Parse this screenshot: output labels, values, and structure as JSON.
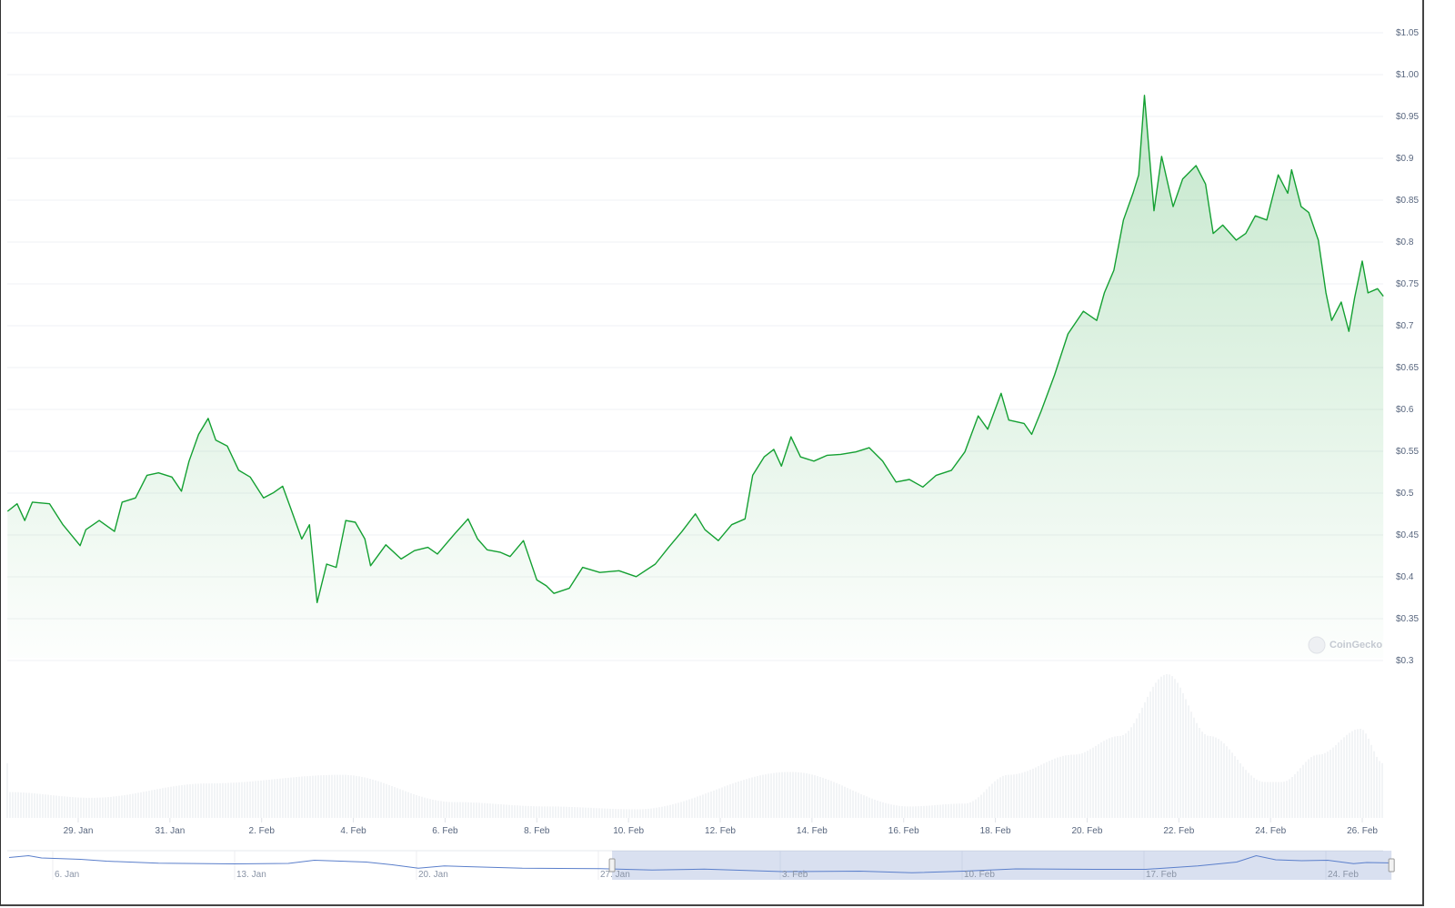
{
  "chart_data": {
    "type": "area",
    "title": "",
    "xlabel": "",
    "ylabel": "",
    "ylim": [
      0.3,
      1.05
    ],
    "y_ticks": [
      "$0.3",
      "$0.35",
      "$0.4",
      "$0.45",
      "$0.5",
      "$0.55",
      "$0.6",
      "$0.65",
      "$0.7",
      "$0.75",
      "$0.8",
      "$0.85",
      "$0.9",
      "$0.95",
      "$1.00",
      "$1.05"
    ],
    "y_tick_values": [
      0.3,
      0.35,
      0.4,
      0.45,
      0.5,
      0.55,
      0.6,
      0.65,
      0.7,
      0.75,
      0.8,
      0.85,
      0.9,
      0.95,
      1.0,
      1.05
    ],
    "x_ticks": [
      "29. Jan",
      "31. Jan",
      "2. Feb",
      "4. Feb",
      "6. Feb",
      "8. Feb",
      "10. Feb",
      "12. Feb",
      "14. Feb",
      "16. Feb",
      "18. Feb",
      "20. Feb",
      "22. Feb",
      "24. Feb",
      "26. Feb"
    ],
    "grid": true,
    "line_color": "#14a032",
    "price": [
      [
        "27 Jan 11:00",
        0.475
      ],
      [
        "27 Jan 16:00",
        0.484
      ],
      [
        "27 Jan 20:00",
        0.464
      ],
      [
        "28 Jan 00:00",
        0.486
      ],
      [
        "28 Jan 09:00",
        0.484
      ],
      [
        "28 Jan 16:00",
        0.459
      ],
      [
        "29 Jan 01:00",
        0.434
      ],
      [
        "29 Jan 04:00",
        0.453
      ],
      [
        "29 Jan 11:00",
        0.464
      ],
      [
        "29 Jan 19:00",
        0.451
      ],
      [
        "29 Jan 23:00",
        0.486
      ],
      [
        "30 Jan 06:00",
        0.491
      ],
      [
        "30 Jan 12:00",
        0.518
      ],
      [
        "30 Jan 18:00",
        0.521
      ],
      [
        "31 Jan 01:00",
        0.516
      ],
      [
        "31 Jan 06:00",
        0.499
      ],
      [
        "31 Jan 10:00",
        0.535
      ],
      [
        "31 Jan 15:00",
        0.567
      ],
      [
        "31 Jan 20:00",
        0.586
      ],
      [
        "1 Feb 00:00",
        0.56
      ],
      [
        "1 Feb 06:00",
        0.553
      ],
      [
        "1 Feb 12:00",
        0.524
      ],
      [
        "1 Feb 18:00",
        0.516
      ],
      [
        "2 Feb 01:00",
        0.491
      ],
      [
        "2 Feb 06:00",
        0.497
      ],
      [
        "2 Feb 11:00",
        0.505
      ],
      [
        "2 Feb 15:00",
        0.48
      ],
      [
        "2 Feb 21:00",
        0.442
      ],
      [
        "3 Feb 01:00",
        0.459
      ],
      [
        "3 Feb 05:00",
        0.366
      ],
      [
        "3 Feb 10:00",
        0.412
      ],
      [
        "3 Feb 15:00",
        0.408
      ],
      [
        "3 Feb 20:00",
        0.464
      ],
      [
        "4 Feb 01:00",
        0.462
      ],
      [
        "4 Feb 06:00",
        0.442
      ],
      [
        "4 Feb 09:00",
        0.41
      ],
      [
        "4 Feb 17:00",
        0.435
      ],
      [
        "5 Feb 01:00",
        0.418
      ],
      [
        "5 Feb 08:00",
        0.428
      ],
      [
        "5 Feb 15:00",
        0.432
      ],
      [
        "5 Feb 20:00",
        0.424
      ],
      [
        "6 Feb 05:00",
        0.448
      ],
      [
        "6 Feb 12:00",
        0.466
      ],
      [
        "6 Feb 17:00",
        0.442
      ],
      [
        "6 Feb 22:00",
        0.429
      ],
      [
        "7 Feb 05:00",
        0.426
      ],
      [
        "7 Feb 10:00",
        0.421
      ],
      [
        "7 Feb 17:00",
        0.44
      ],
      [
        "8 Feb 00:00",
        0.393
      ],
      [
        "8 Feb 05:00",
        0.386
      ],
      [
        "8 Feb 09:00",
        0.377
      ],
      [
        "8 Feb 17:00",
        0.383
      ],
      [
        "9 Feb 00:00",
        0.408
      ],
      [
        "9 Feb 09:00",
        0.402
      ],
      [
        "9 Feb 19:00",
        0.404
      ],
      [
        "10 Feb 04:00",
        0.397
      ],
      [
        "10 Feb 14:00",
        0.412
      ],
      [
        "10 Feb 21:00",
        0.432
      ],
      [
        "11 Feb 04:00",
        0.451
      ],
      [
        "11 Feb 11:00",
        0.472
      ],
      [
        "11 Feb 16:00",
        0.453
      ],
      [
        "11 Feb 23:00",
        0.44
      ],
      [
        "12 Feb 06:00",
        0.459
      ],
      [
        "12 Feb 13:00",
        0.466
      ],
      [
        "12 Feb 17:00",
        0.518
      ],
      [
        "12 Feb 23:00",
        0.54
      ],
      [
        "13 Feb 04:00",
        0.549
      ],
      [
        "13 Feb 08:00",
        0.529
      ],
      [
        "13 Feb 13:00",
        0.564
      ],
      [
        "13 Feb 18:00",
        0.54
      ],
      [
        "14 Feb 01:00",
        0.535
      ],
      [
        "14 Feb 08:00",
        0.542
      ],
      [
        "14 Feb 15:00",
        0.543
      ],
      [
        "14 Feb 23:00",
        0.546
      ],
      [
        "15 Feb 06:00",
        0.551
      ],
      [
        "15 Feb 13:00",
        0.535
      ],
      [
        "15 Feb 20:00",
        0.51
      ],
      [
        "16 Feb 03:00",
        0.513
      ],
      [
        "16 Feb 10:00",
        0.504
      ],
      [
        "16 Feb 17:00",
        0.518
      ],
      [
        "17 Feb 01:00",
        0.524
      ],
      [
        "17 Feb 08:00",
        0.546
      ],
      [
        "17 Feb 15:00",
        0.589
      ],
      [
        "17 Feb 20:00",
        0.573
      ],
      [
        "18 Feb 03:00",
        0.616
      ],
      [
        "18 Feb 07:00",
        0.584
      ],
      [
        "18 Feb 15:00",
        0.58
      ],
      [
        "18 Feb 19:00",
        0.567
      ],
      [
        "19 Feb 00:00",
        0.595
      ],
      [
        "19 Feb 07:00",
        0.638
      ],
      [
        "19 Feb 14:00",
        0.687
      ],
      [
        "19 Feb 22:00",
        0.714
      ],
      [
        "20 Feb 05:00",
        0.703
      ],
      [
        "20 Feb 09:00",
        0.736
      ],
      [
        "20 Feb 14:00",
        0.763
      ],
      [
        "20 Feb 19:00",
        0.823
      ],
      [
        "21 Feb 00:00",
        0.855
      ],
      [
        "21 Feb 03:00",
        0.877
      ],
      [
        "21 Feb 06:00",
        0.972
      ],
      [
        "21 Feb 11:00",
        0.834
      ],
      [
        "21 Feb 15:00",
        0.899
      ],
      [
        "21 Feb 21:00",
        0.839
      ],
      [
        "22 Feb 02:00",
        0.872
      ],
      [
        "22 Feb 09:00",
        0.888
      ],
      [
        "22 Feb 14:00",
        0.866
      ],
      [
        "22 Feb 18:00",
        0.807
      ],
      [
        "22 Feb 23:00",
        0.817
      ],
      [
        "23 Feb 06:00",
        0.799
      ],
      [
        "23 Feb 11:00",
        0.807
      ],
      [
        "23 Feb 16:00",
        0.828
      ],
      [
        "23 Feb 22:00",
        0.823
      ],
      [
        "24 Feb 04:00",
        0.877
      ],
      [
        "24 Feb 09:00",
        0.855
      ],
      [
        "24 Feb 11:00",
        0.883
      ],
      [
        "24 Feb 16:00",
        0.839
      ],
      [
        "24 Feb 20:00",
        0.832
      ],
      [
        "25 Feb 01:00",
        0.799
      ],
      [
        "25 Feb 05:00",
        0.736
      ],
      [
        "25 Feb 08:00",
        0.703
      ],
      [
        "25 Feb 13:00",
        0.725
      ],
      [
        "25 Feb 17:00",
        0.69
      ],
      [
        "25 Feb 20:00",
        0.73
      ],
      [
        "26 Feb 00:00",
        0.774
      ],
      [
        "26 Feb 03:00",
        0.736
      ],
      [
        "26 Feb 08:00",
        0.741
      ],
      [
        "26 Feb 11:00",
        0.732
      ]
    ],
    "volume_relative": [
      [
        "27 Jan 11:00",
        0.18
      ],
      [
        "29 Jan 07:00",
        0.14
      ],
      [
        "31 Jan 20:00",
        0.24
      ],
      [
        "3 Feb 18:00",
        0.3
      ],
      [
        "6 Feb 05:00",
        0.11
      ],
      [
        "8 Feb 05:00",
        0.08
      ],
      [
        "10 Feb 04:00",
        0.06
      ],
      [
        "13 Feb 13:00",
        0.32
      ],
      [
        "16 Feb 03:00",
        0.08
      ],
      [
        "17 Feb 08:00",
        0.1
      ],
      [
        "18 Feb 07:00",
        0.3
      ],
      [
        "19 Feb 17:00",
        0.44
      ],
      [
        "20 Feb 17:00",
        0.57
      ],
      [
        "21 Feb 18:00",
        1.0
      ],
      [
        "22 Feb 16:00",
        0.57
      ],
      [
        "23 Feb 21:00",
        0.25
      ],
      [
        "24 Feb 06:00",
        0.25
      ],
      [
        "25 Feb 01:00",
        0.44
      ],
      [
        "25 Feb 23:00",
        0.62
      ],
      [
        "26 Feb 11:00",
        0.38
      ]
    ]
  },
  "navigator": {
    "labels": [
      "6. Jan",
      "13. Jan",
      "20. Jan",
      "27. Jan",
      "3. Feb",
      "10. Feb",
      "17. Feb",
      "24. Feb"
    ],
    "selection_start": "27 Jan 11:00",
    "selection_end": "26 Feb 11:00",
    "line_color": "#5b7fcb",
    "series_relative": [
      [
        "4 Jan 06:00",
        0.82
      ],
      [
        "5 Jan 00:00",
        0.9
      ],
      [
        "5 Jan 12:00",
        0.8
      ],
      [
        "6 Jan 00:00",
        0.78
      ],
      [
        "7 Jan 00:00",
        0.74
      ],
      [
        "8 Jan 00:00",
        0.66
      ],
      [
        "10 Jan 00:00",
        0.57
      ],
      [
        "13 Jan 00:00",
        0.54
      ],
      [
        "15 Jan 00:00",
        0.56
      ],
      [
        "16 Jan 00:00",
        0.7
      ],
      [
        "18 Jan 00:00",
        0.62
      ],
      [
        "19 Jan 00:00",
        0.5
      ],
      [
        "20 Jan 00:00",
        0.35
      ],
      [
        "21 Jan 00:00",
        0.45
      ],
      [
        "24 Jan 00:00",
        0.35
      ],
      [
        "27 Jan 00:00",
        0.33
      ],
      [
        "29 Jan 00:00",
        0.27
      ],
      [
        "31 Jan 00:00",
        0.31
      ],
      [
        "3 Feb 00:00",
        0.2
      ],
      [
        "6 Feb 00:00",
        0.22
      ],
      [
        "8 Feb 00:00",
        0.15
      ],
      [
        "10 Feb 00:00",
        0.22
      ],
      [
        "12 Feb 00:00",
        0.32
      ],
      [
        "15 Feb 00:00",
        0.3
      ],
      [
        "17 Feb 00:00",
        0.3
      ],
      [
        "19 Feb 00:00",
        0.45
      ],
      [
        "20 Feb 12:00",
        0.62
      ],
      [
        "21 Feb 06:00",
        0.9
      ],
      [
        "22 Feb 00:00",
        0.72
      ],
      [
        "23 Feb 00:00",
        0.68
      ],
      [
        "24 Feb 00:00",
        0.7
      ],
      [
        "25 Feb 00:00",
        0.55
      ],
      [
        "25 Feb 12:00",
        0.6
      ],
      [
        "26 Feb 11:00",
        0.58
      ]
    ]
  },
  "watermark": "CoinGecko"
}
